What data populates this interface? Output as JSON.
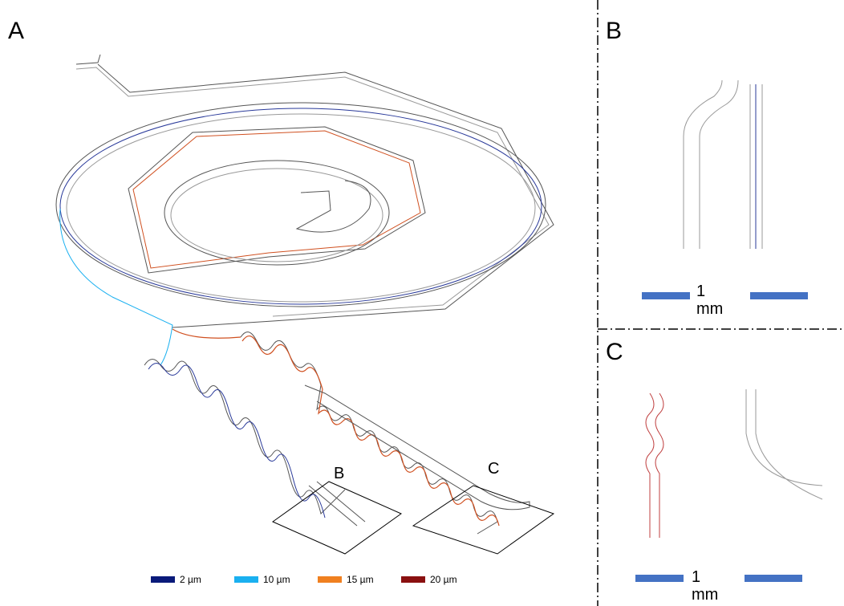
{
  "panels": {
    "a": {
      "label": "A",
      "insets": [
        "B",
        "C"
      ]
    },
    "b": {
      "label": "B",
      "scale_bar": "1 mm"
    },
    "c": {
      "label": "C",
      "scale_bar": "1 mm"
    }
  },
  "legend": [
    {
      "label": "2 µm",
      "color": "#0a1a7a"
    },
    {
      "label": "10 µm",
      "color": "#1ab0f0"
    },
    {
      "label": "15 µm",
      "color": "#f08020"
    },
    {
      "label": "20 µm",
      "color": "#8a1010"
    }
  ]
}
